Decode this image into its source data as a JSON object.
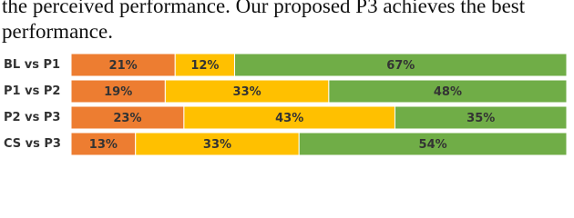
{
  "text": [
    "the perceived performance. Our proposed P3 achieves the best",
    "performance."
  ],
  "chart_data": {
    "type": "bar",
    "orientation": "horizontal",
    "stacked": true,
    "categories": [
      "BL vs P1",
      "P1 vs P2",
      "P2 vs P3",
      "CS vs P3"
    ],
    "series": [
      {
        "color": "#ed7d31",
        "values": [
          21,
          19,
          23,
          13
        ],
        "value_labels": [
          "21%",
          "19%",
          "23%",
          "13%"
        ]
      },
      {
        "color": "#ffc000",
        "values": [
          12,
          33,
          43,
          33
        ],
        "value_labels": [
          "12%",
          "33%",
          "43%",
          "33%"
        ]
      },
      {
        "color": "#70ad47",
        "values": [
          67,
          48,
          35,
          54
        ],
        "value_labels": [
          "67%",
          "48%",
          "35%",
          "54%"
        ]
      }
    ]
  }
}
